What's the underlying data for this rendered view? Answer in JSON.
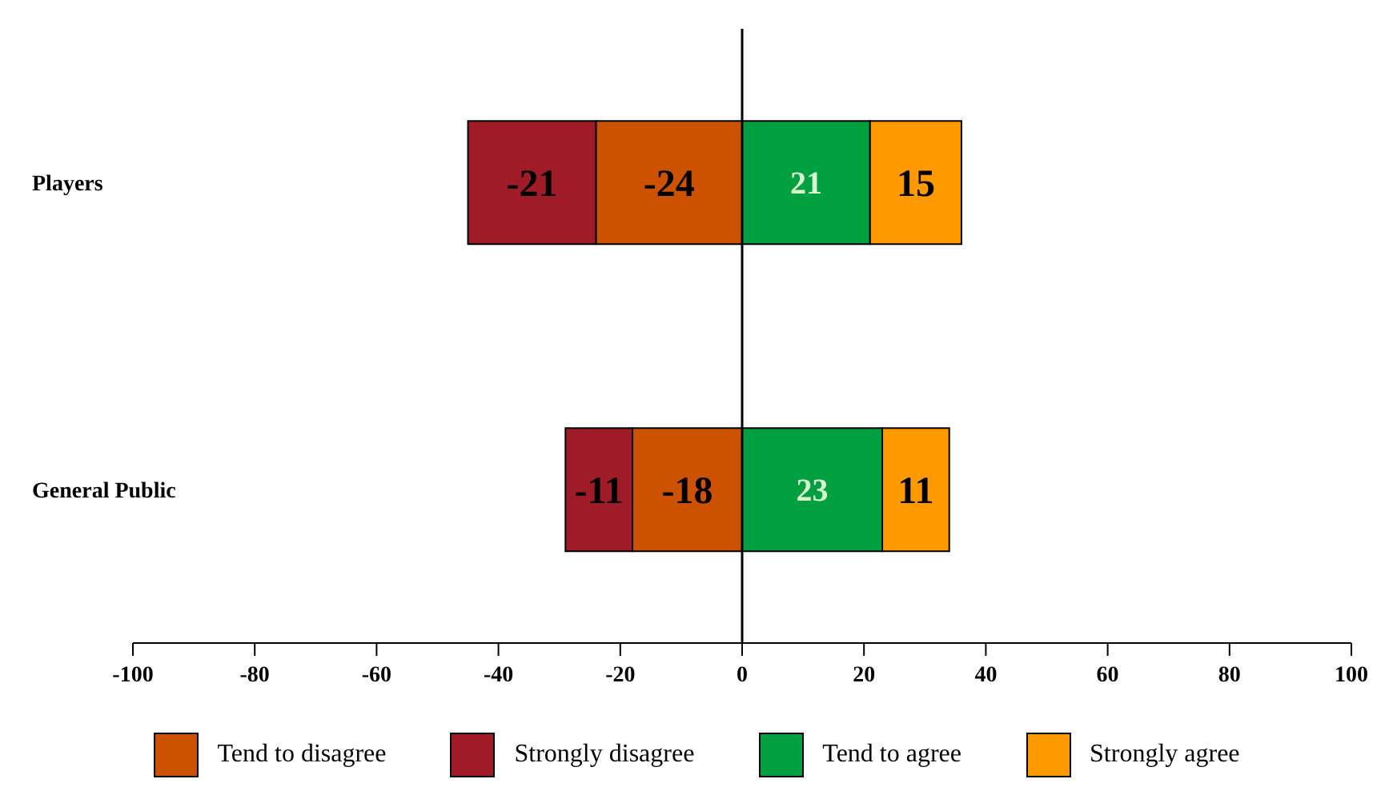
{
  "chart_data": {
    "type": "bar",
    "orientation": "horizontal",
    "stacked": true,
    "categories": [
      "Players",
      "General Public"
    ],
    "series": [
      {
        "name": "Tend to disagree",
        "color": "#cc5200",
        "values": [
          -24,
          -18
        ]
      },
      {
        "name": "Strongly disagree",
        "color": "#9e1b27",
        "values": [
          -21,
          -11
        ]
      },
      {
        "name": "Tend to agree",
        "color": "#00a040",
        "values": [
          21,
          23
        ]
      },
      {
        "name": "Strongly agree",
        "color": "#ff9900",
        "values": [
          15,
          11
        ]
      }
    ],
    "xlim": [
      -100,
      100
    ],
    "xticks": [
      -100,
      -80,
      -60,
      -40,
      -20,
      0,
      20,
      40,
      60,
      80,
      100
    ],
    "data_labels": true,
    "legend": "bottom",
    "ref_lines": [
      {
        "axis": "x",
        "value": 0,
        "color": "#000000"
      }
    ]
  }
}
